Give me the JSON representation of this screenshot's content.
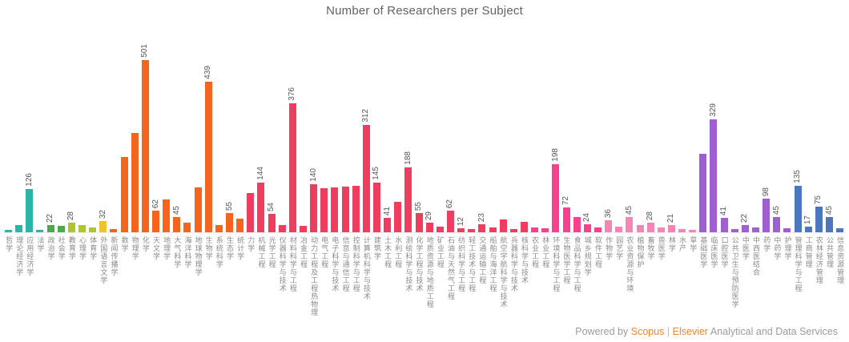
{
  "footer": {
    "powered_by": "Powered by ",
    "scopus": "Scopus",
    "separator": " | ",
    "elsevier": "Elsevier",
    "suffix": " Analytical and Data Services"
  },
  "chart_data": {
    "type": "bar",
    "title": "Number of Researchers per Subject",
    "xlabel": "",
    "ylabel": "",
    "ylim": [
      0,
      520
    ],
    "grid": false,
    "legend": "none",
    "value_labels_rotation": 90,
    "tick_labels_rotation": 90,
    "group_colors": {
      "teal": "#2ab5a8",
      "green": "#4aa84f",
      "lime": "#aec531",
      "yellow": "#f2c12e",
      "orange": "#f4641d",
      "red": "#ee3d5f",
      "magenta": "#f9408d",
      "pink": "#f585b5",
      "purple": "#a05fd0",
      "blue": "#4b77be"
    },
    "bars": [
      {
        "label": "哲学",
        "value": 8,
        "group": "teal",
        "labeled": false
      },
      {
        "label": "理论经济学",
        "value": 20,
        "group": "teal",
        "labeled": false
      },
      {
        "label": "应用经济学",
        "value": 126,
        "group": "teal",
        "labeled": true
      },
      {
        "label": "法学",
        "value": 6,
        "group": "teal",
        "labeled": false
      },
      {
        "label": "政治学",
        "value": 22,
        "group": "green",
        "labeled": true
      },
      {
        "label": "社会学",
        "value": 18,
        "group": "green",
        "labeled": false
      },
      {
        "label": "教育学",
        "value": 28,
        "group": "lime",
        "labeled": true
      },
      {
        "label": "心理学",
        "value": 21,
        "group": "lime",
        "labeled": false
      },
      {
        "label": "体育学",
        "value": 14,
        "group": "lime",
        "labeled": false
      },
      {
        "label": "外国语言文学",
        "value": 32,
        "group": "yellow",
        "labeled": true
      },
      {
        "label": "新闻传播学",
        "value": 10,
        "group": "orange",
        "labeled": false
      },
      {
        "label": "数学",
        "value": 218,
        "group": "orange",
        "labeled": false
      },
      {
        "label": "物理学",
        "value": 288,
        "group": "orange",
        "labeled": false
      },
      {
        "label": "化学",
        "value": 501,
        "group": "orange",
        "labeled": true
      },
      {
        "label": "天文学",
        "value": 62,
        "group": "orange",
        "labeled": true
      },
      {
        "label": "地理学",
        "value": 95,
        "group": "orange",
        "labeled": false
      },
      {
        "label": "大气科学",
        "value": 45,
        "group": "orange",
        "labeled": true
      },
      {
        "label": "海洋科学",
        "value": 28,
        "group": "orange",
        "labeled": false
      },
      {
        "label": "地球物理学",
        "value": 130,
        "group": "orange",
        "labeled": false
      },
      {
        "label": "生物学",
        "value": 439,
        "group": "orange",
        "labeled": true
      },
      {
        "label": "系统科学",
        "value": 22,
        "group": "orange",
        "labeled": false
      },
      {
        "label": "生态学",
        "value": 55,
        "group": "orange",
        "labeled": true
      },
      {
        "label": "统计学",
        "value": 40,
        "group": "orange",
        "labeled": false
      },
      {
        "label": "力学",
        "value": 115,
        "group": "red",
        "labeled": false
      },
      {
        "label": "机械工程",
        "value": 144,
        "group": "red",
        "labeled": true
      },
      {
        "label": "光学工程",
        "value": 54,
        "group": "red",
        "labeled": true
      },
      {
        "label": "仪器科学与技术",
        "value": 22,
        "group": "red",
        "labeled": false
      },
      {
        "label": "材料科学与工程",
        "value": 376,
        "group": "red",
        "labeled": true
      },
      {
        "label": "冶金工程",
        "value": 18,
        "group": "red",
        "labeled": false
      },
      {
        "label": "动力工程及工程热物理",
        "value": 140,
        "group": "red",
        "labeled": true
      },
      {
        "label": "电气工程",
        "value": 128,
        "group": "red",
        "labeled": false
      },
      {
        "label": "电子科学与技术",
        "value": 130,
        "group": "red",
        "labeled": false
      },
      {
        "label": "信息与通信工程",
        "value": 133,
        "group": "red",
        "labeled": false
      },
      {
        "label": "控制科学与工程",
        "value": 136,
        "group": "red",
        "labeled": false
      },
      {
        "label": "计算机科学与技术",
        "value": 312,
        "group": "red",
        "labeled": true
      },
      {
        "label": "建筑学",
        "value": 145,
        "group": "red",
        "labeled": true
      },
      {
        "label": "土木工程",
        "value": 41,
        "group": "red",
        "labeled": true
      },
      {
        "label": "水利工程",
        "value": 88,
        "group": "red",
        "labeled": false
      },
      {
        "label": "测绘科学与技术",
        "value": 188,
        "group": "red",
        "labeled": true
      },
      {
        "label": "化学工程与技术",
        "value": 55,
        "group": "red",
        "labeled": true
      },
      {
        "label": "地质资源与地质工程",
        "value": 29,
        "group": "red",
        "labeled": true
      },
      {
        "label": "矿业工程",
        "value": 16,
        "group": "red",
        "labeled": false
      },
      {
        "label": "石油与天然气工程",
        "value": 62,
        "group": "red",
        "labeled": true
      },
      {
        "label": "纺织科学与工程",
        "value": 12,
        "group": "red",
        "labeled": true
      },
      {
        "label": "轻工技术与工程",
        "value": 9,
        "group": "red",
        "labeled": false
      },
      {
        "label": "交通运输工程",
        "value": 23,
        "group": "red",
        "labeled": true
      },
      {
        "label": "船舶与海洋工程",
        "value": 14,
        "group": "red",
        "labeled": false
      },
      {
        "label": "航空宇航科学与技术",
        "value": 38,
        "group": "red",
        "labeled": false
      },
      {
        "label": "兵器科学与技术",
        "value": 10,
        "group": "red",
        "labeled": false
      },
      {
        "label": "核科学与技术",
        "value": 30,
        "group": "red",
        "labeled": false
      },
      {
        "label": "农业工程",
        "value": 15,
        "group": "magenta",
        "labeled": false
      },
      {
        "label": "林业工程",
        "value": 11,
        "group": "magenta",
        "labeled": false
      },
      {
        "label": "环境科学与工程",
        "value": 198,
        "group": "magenta",
        "labeled": true
      },
      {
        "label": "生物医学工程",
        "value": 72,
        "group": "magenta",
        "labeled": true
      },
      {
        "label": "食品科学与工程",
        "value": 45,
        "group": "magenta",
        "labeled": false
      },
      {
        "label": "城乡规划学",
        "value": 24,
        "group": "magenta",
        "labeled": true
      },
      {
        "label": "软件工程",
        "value": 14,
        "group": "magenta",
        "labeled": false
      },
      {
        "label": "作物学",
        "value": 36,
        "group": "pink",
        "labeled": true
      },
      {
        "label": "园艺学",
        "value": 17,
        "group": "pink",
        "labeled": false
      },
      {
        "label": "农业资源与环境",
        "value": 45,
        "group": "pink",
        "labeled": true
      },
      {
        "label": "植物保护",
        "value": 20,
        "group": "pink",
        "labeled": false
      },
      {
        "label": "畜牧学",
        "value": 28,
        "group": "pink",
        "labeled": true
      },
      {
        "label": "兽医学",
        "value": 13,
        "group": "pink",
        "labeled": false
      },
      {
        "label": "林学",
        "value": 21,
        "group": "pink",
        "labeled": true
      },
      {
        "label": "水产",
        "value": 9,
        "group": "pink",
        "labeled": false
      },
      {
        "label": "草学",
        "value": 7,
        "group": "pink",
        "labeled": false
      },
      {
        "label": "基础医学",
        "value": 229,
        "group": "purple",
        "labeled": false
      },
      {
        "label": "临床医学",
        "value": 329,
        "group": "purple",
        "labeled": true
      },
      {
        "label": "口腔医学",
        "value": 41,
        "group": "purple",
        "labeled": true
      },
      {
        "label": "公共卫生与预防医学",
        "value": 10,
        "group": "purple",
        "labeled": false
      },
      {
        "label": "中医学",
        "value": 22,
        "group": "purple",
        "labeled": true
      },
      {
        "label": "中西医结合",
        "value": 15,
        "group": "purple",
        "labeled": false
      },
      {
        "label": "药学",
        "value": 98,
        "group": "purple",
        "labeled": true
      },
      {
        "label": "中药学",
        "value": 45,
        "group": "purple",
        "labeled": true
      },
      {
        "label": "护理学",
        "value": 12,
        "group": "purple",
        "labeled": false
      },
      {
        "label": "管理科学与工程",
        "value": 135,
        "group": "blue",
        "labeled": true
      },
      {
        "label": "工商管理",
        "value": 17,
        "group": "blue",
        "labeled": true
      },
      {
        "label": "农林经济管理",
        "value": 75,
        "group": "blue",
        "labeled": true
      },
      {
        "label": "公共管理",
        "value": 45,
        "group": "blue",
        "labeled": true
      },
      {
        "label": "信息资源管理",
        "value": 12,
        "group": "blue",
        "labeled": false
      }
    ]
  }
}
